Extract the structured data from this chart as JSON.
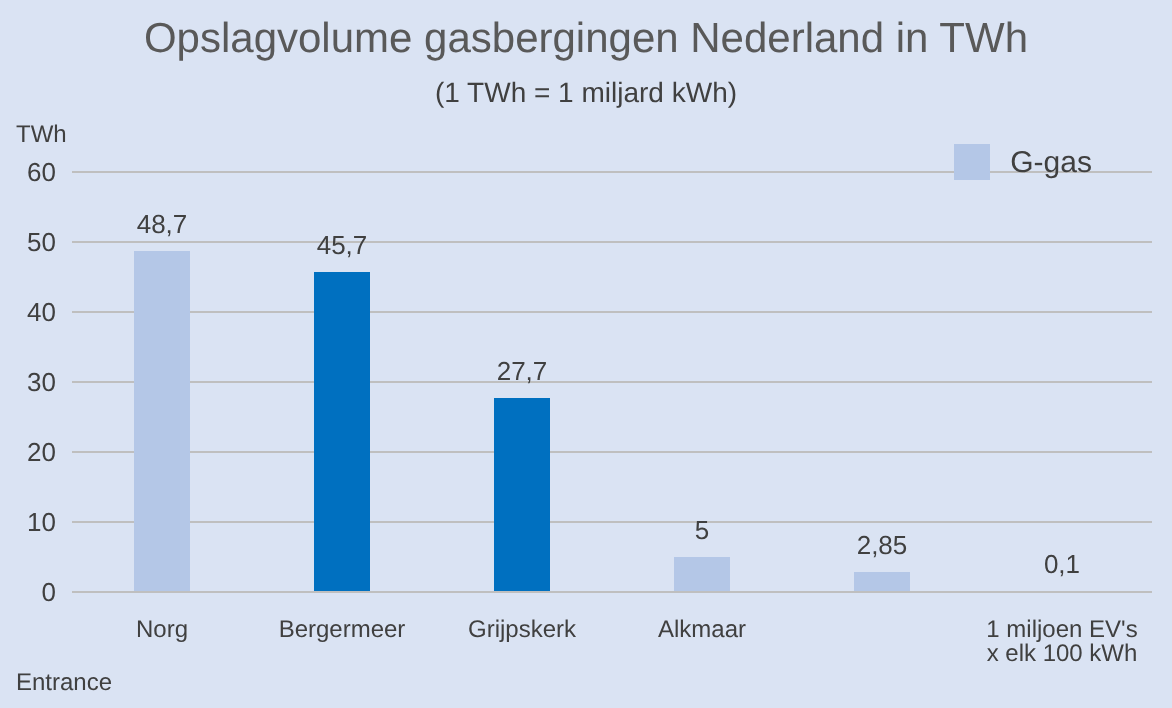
{
  "chart_data": {
    "type": "bar",
    "title": "Opslagvolume gasbergingen Nederland in TWh",
    "subtitle": "(1 TWh = 1 miljard kWh)",
    "ylabel": "TWh",
    "categories": [
      "Norg",
      "Bergermeer",
      "Grijpskerk",
      "Alkmaar",
      null,
      "1 miljoen EV's x elk 100 kWh"
    ],
    "series": [
      {
        "name": "G-gas",
        "color": "#b4c7e7",
        "values": [
          48.7,
          45.7,
          27.7,
          5,
          2.85,
          0.1
        ],
        "colors": [
          "#b4c7e7",
          "#0070c0",
          "#0070c0",
          "#b4c7e7",
          "#b4c7e7",
          "#c00000"
        ],
        "value_labels": [
          "48,7",
          "45,7",
          "27,7",
          "5",
          "2,85",
          "0,1"
        ]
      }
    ],
    "ylim": [
      0,
      60
    ],
    "yticks": [
      0,
      10,
      20,
      30,
      40,
      50,
      60
    ],
    "grid": "y",
    "legend": "top right",
    "annotations": [
      "Entrance"
    ]
  }
}
